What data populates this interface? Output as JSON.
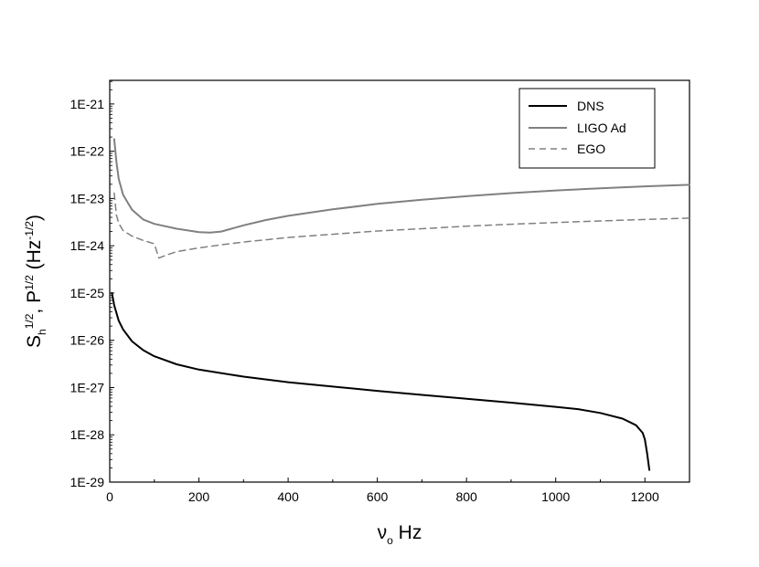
{
  "chart_data": {
    "type": "line",
    "title": "",
    "xlabel": {
      "base": "ν",
      "sub": "o",
      "rest": " Hz"
    },
    "ylabel": {
      "s": "S",
      "s_sub": "h",
      "s_sup": "1/2",
      "sep": ", ",
      "p": "P",
      "p_sup": "1/2",
      "open": " (Hz",
      "unit_sup": "-1/2",
      "close": ")"
    },
    "xlim": [
      0,
      1300
    ],
    "ylim_log10": [
      -29,
      -20.5
    ],
    "x_ticks": [
      {
        "value": 0,
        "label": "0"
      },
      {
        "value": 200,
        "label": "200"
      },
      {
        "value": 400,
        "label": "400"
      },
      {
        "value": 600,
        "label": "600"
      },
      {
        "value": 800,
        "label": "800"
      },
      {
        "value": 1000,
        "label": "1000"
      },
      {
        "value": 1200,
        "label": "1200"
      }
    ],
    "y_ticks": [
      {
        "exp": -21,
        "label": "1E-21"
      },
      {
        "exp": -22,
        "label": "1E-22"
      },
      {
        "exp": -23,
        "label": "1E-23"
      },
      {
        "exp": -24,
        "label": "1E-24"
      },
      {
        "exp": -25,
        "label": "1E-25"
      },
      {
        "exp": -26,
        "label": "1E-26"
      },
      {
        "exp": -27,
        "label": "1E-27"
      },
      {
        "exp": -28,
        "label": "1E-28"
      },
      {
        "exp": -29,
        "label": "1E-29"
      }
    ],
    "grid": false,
    "legend_position": "top-right",
    "series": [
      {
        "name": "DNS",
        "color": "#000000",
        "style": "solid",
        "x": [
          5,
          10,
          20,
          30,
          50,
          75,
          100,
          150,
          200,
          300,
          400,
          500,
          600,
          700,
          800,
          900,
          1000,
          1050,
          1100,
          1150,
          1180,
          1195,
          1200,
          1205,
          1210
        ],
        "y": [
          1e-25,
          5.5e-26,
          2.6e-26,
          1.7e-26,
          9.5e-27,
          6.2e-27,
          4.6e-27,
          3.1e-27,
          2.4e-27,
          1.7e-27,
          1.3e-27,
          1.05e-27,
          8.5e-28,
          7e-28,
          5.8e-28,
          4.8e-28,
          3.9e-28,
          3.5e-28,
          2.9e-28,
          2.2e-28,
          1.6e-28,
          1.1e-28,
          8e-29,
          4e-29,
          1.8e-29
        ]
      },
      {
        "name": "LIGO Ad",
        "color": "#808080",
        "style": "solid",
        "x": [
          10,
          15,
          20,
          30,
          40,
          50,
          75,
          100,
          150,
          200,
          225,
          250,
          300,
          350,
          400,
          500,
          600,
          700,
          800,
          900,
          1000,
          1100,
          1200,
          1300
        ],
        "y": [
          1.8e-22,
          6e-23,
          2.6e-23,
          1.2e-23,
          8.3e-24,
          5.8e-24,
          3.6e-24,
          2.9e-24,
          2.3e-24,
          1.95e-24,
          1.9e-24,
          2e-24,
          2.7e-24,
          3.5e-24,
          4.3e-24,
          5.9e-24,
          7.7e-24,
          9.4e-24,
          1.12e-23,
          1.3e-23,
          1.48e-23,
          1.65e-23,
          1.81e-23,
          1.95e-23
        ]
      },
      {
        "name": "EGO",
        "color": "#808080",
        "style": "dashed",
        "x": [
          10,
          15,
          20,
          30,
          50,
          75,
          100,
          110,
          130,
          150,
          200,
          250,
          300,
          400,
          500,
          600,
          700,
          800,
          900,
          1000,
          1100,
          1200,
          1300
        ],
        "y": [
          1.3e-23,
          4.5e-24,
          3e-24,
          2.1e-24,
          1.6e-24,
          1.3e-24,
          1.1e-24,
          5.5e-25,
          6.5e-25,
          7.5e-25,
          9e-25,
          1.05e-24,
          1.2e-24,
          1.5e-24,
          1.75e-24,
          2.05e-24,
          2.3e-24,
          2.6e-24,
          2.85e-24,
          3.1e-24,
          3.35e-24,
          3.6e-24,
          3.85e-24
        ]
      }
    ]
  }
}
